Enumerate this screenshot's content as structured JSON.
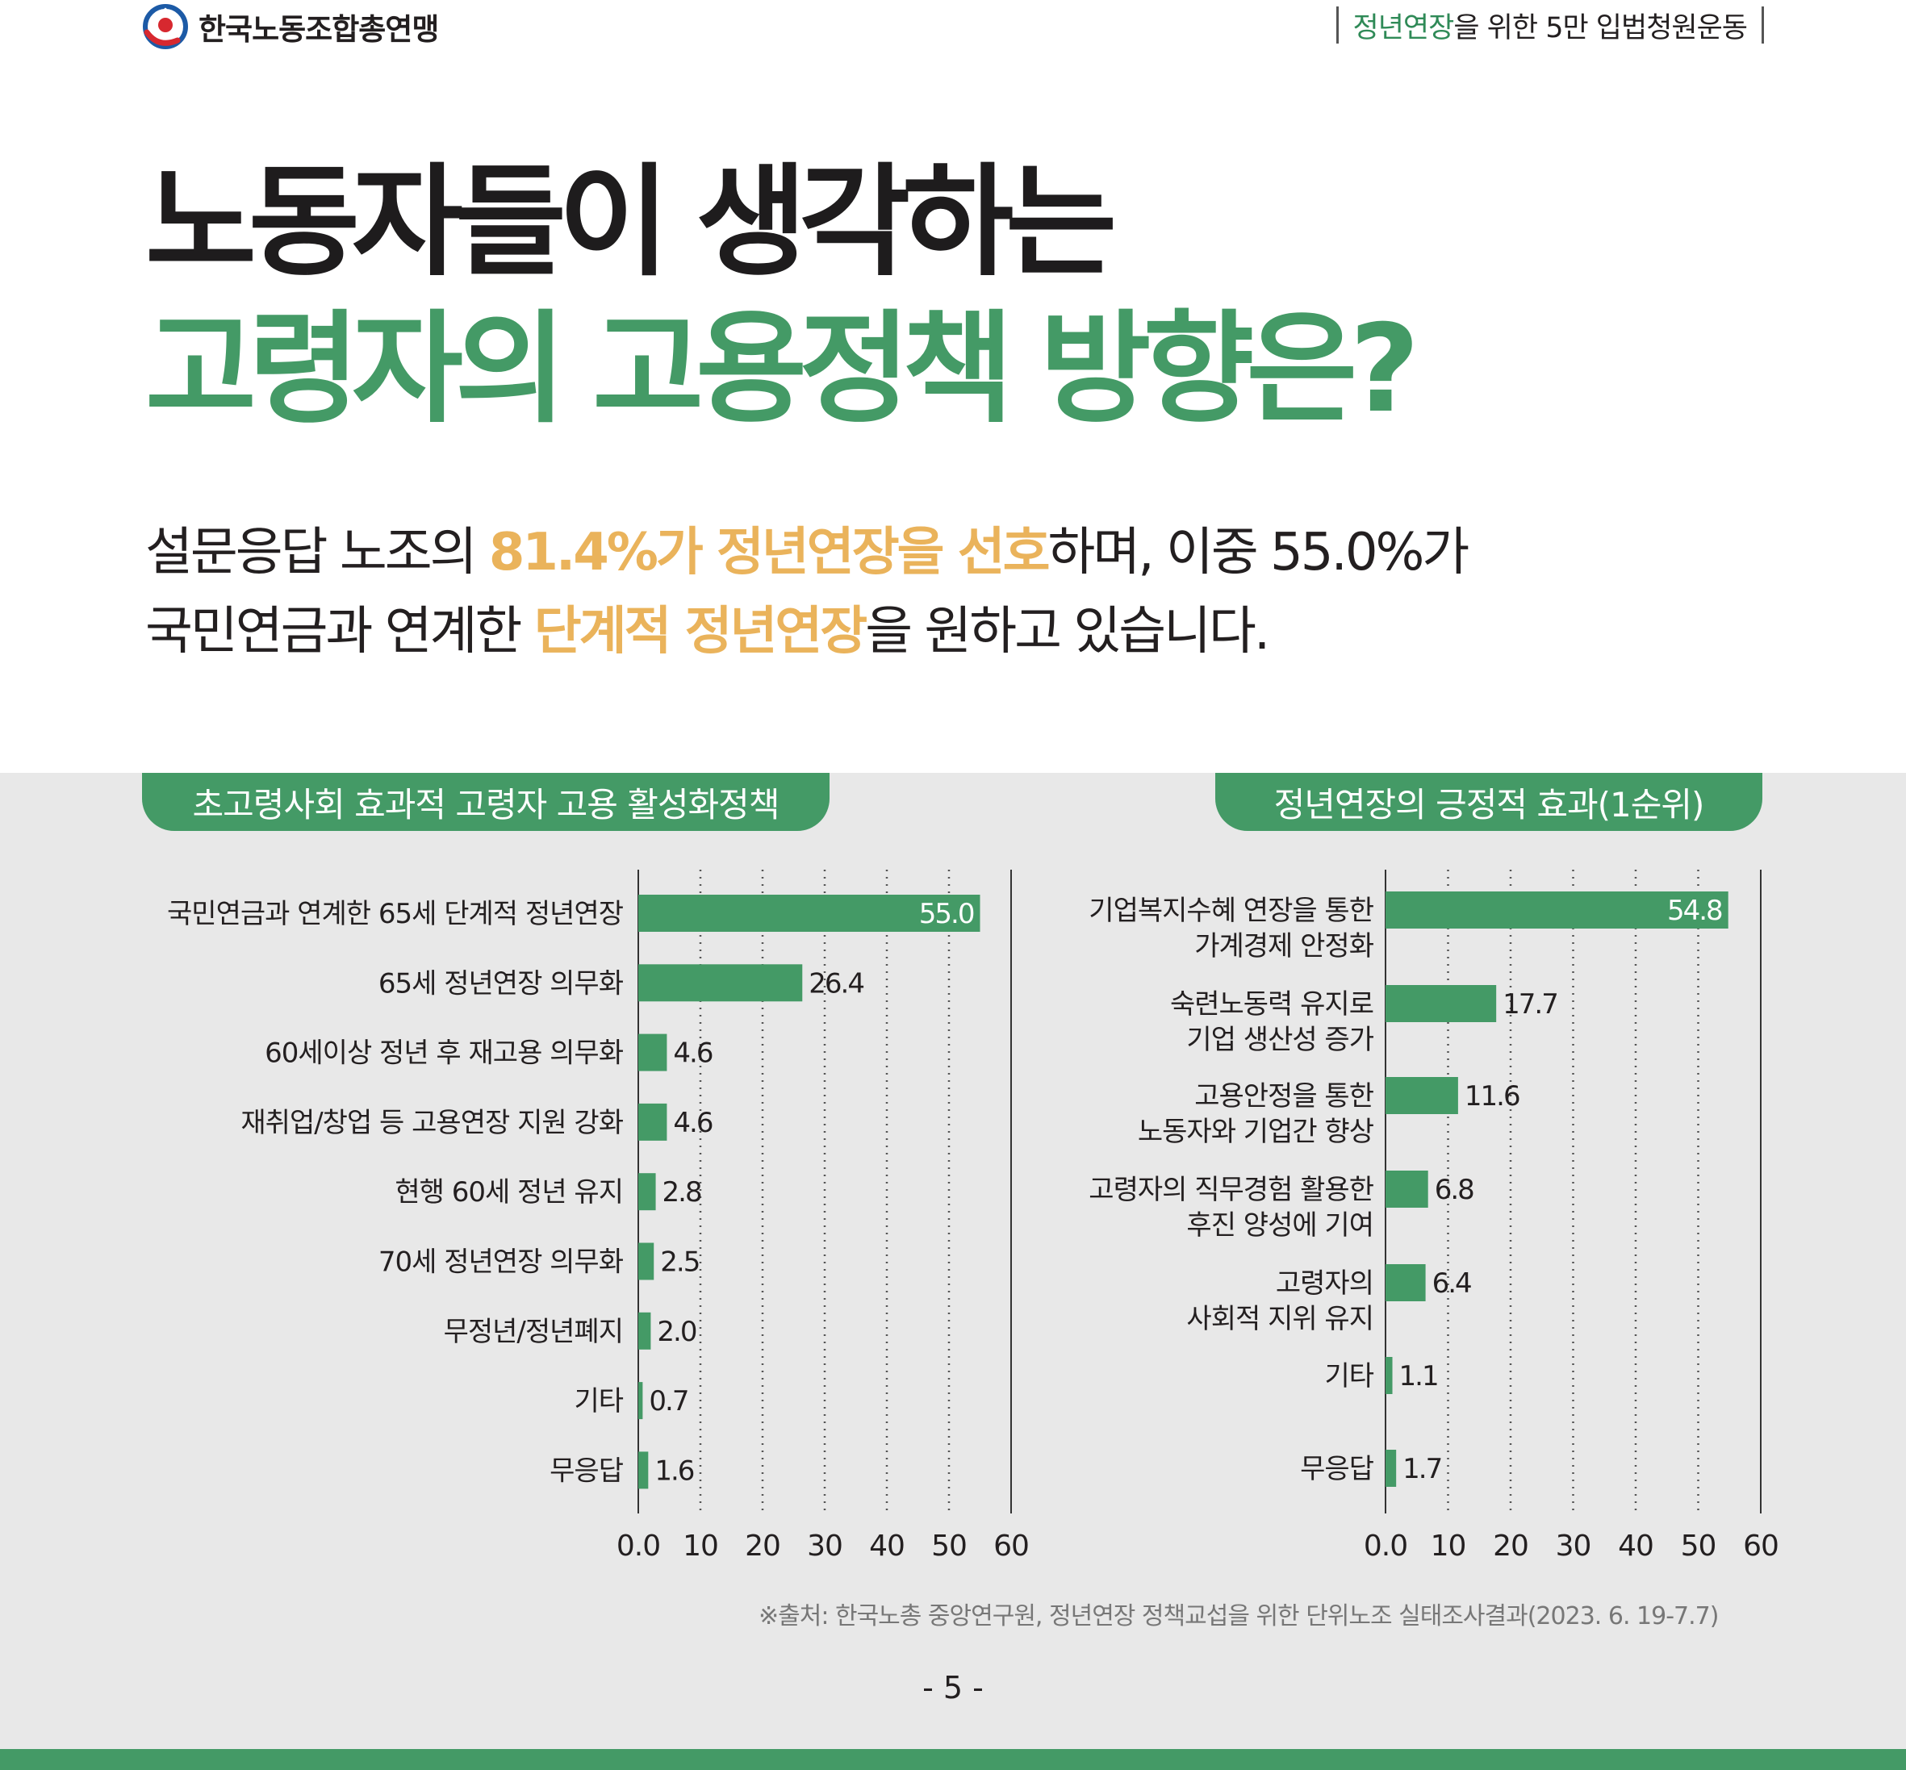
{
  "header": {
    "org_name": "한국노동조합총연맹",
    "campaign_highlight": "정년연장",
    "campaign_rest": "을 위한 5만 입법청원운동"
  },
  "title": {
    "line1": "노동자들이 생각하는",
    "line2": "고령자의 고용정책 방향은?"
  },
  "subtitle": {
    "p1": "설문응답 노조의 ",
    "p1_hl": "81.4%가 정년연장을 선호",
    "p1_rest": "하며, 이중 55.0%가",
    "p2": "국민연금과 연계한 ",
    "p2_hl": "단계적 정년연장",
    "p2_rest": "을 원하고 있습니다."
  },
  "colors": {
    "accent": "#449a66",
    "highlight": "#eab35b",
    "band": "#e8e8e8"
  },
  "chart_data": [
    {
      "type": "bar",
      "orientation": "horizontal",
      "title": "초고령사회 효과적 고령자 고용 활성화정책",
      "categories": [
        [
          "국민연금과 연계한 65세 단계적 정년연장"
        ],
        [
          "65세 정년연장 의무화"
        ],
        [
          "60세이상 정년 후 재고용 의무화"
        ],
        [
          "재취업/창업 등 고용연장 지원 강화"
        ],
        [
          "현행 60세 정년 유지"
        ],
        [
          "70세 정년연장 의무화"
        ],
        [
          "무정년/정년폐지"
        ],
        [
          "기타"
        ],
        [
          "무응답"
        ]
      ],
      "values": [
        55.0,
        26.4,
        4.6,
        4.6,
        2.8,
        2.5,
        2.0,
        0.7,
        1.6
      ],
      "value_labels": [
        "55.0",
        "26.4",
        "4.6",
        "4.6",
        "2.8",
        "2.5",
        "2.0",
        "0.7",
        "1.6"
      ],
      "xlim": [
        0,
        60
      ],
      "xticks": [
        0,
        10,
        20,
        30,
        40,
        50,
        60
      ],
      "xtick_labels": [
        "0.0",
        "10",
        "20",
        "30",
        "40",
        "50",
        "60"
      ],
      "grid": "vertical dotted"
    },
    {
      "type": "bar",
      "orientation": "horizontal",
      "title": "정년연장의 긍정적 효과(1순위)",
      "categories": [
        [
          "기업복지수혜 연장을 통한",
          "가계경제 안정화"
        ],
        [
          "숙련노동력 유지로",
          "기업 생산성 증가"
        ],
        [
          "고용안정을 통한",
          "노동자와 기업간 향상"
        ],
        [
          "고령자의 직무경험 활용한",
          "후진 양성에 기여"
        ],
        [
          "고령자의",
          "사회적 지위 유지"
        ],
        [
          "기타"
        ],
        [
          "무응답"
        ]
      ],
      "values": [
        54.8,
        17.7,
        11.6,
        6.8,
        6.4,
        1.1,
        1.7
      ],
      "value_labels": [
        "54.8",
        "17.7",
        "11.6",
        "6.8",
        "6.4",
        "1.1",
        "1.7"
      ],
      "xlim": [
        0,
        60
      ],
      "xticks": [
        0,
        10,
        20,
        30,
        40,
        50,
        60
      ],
      "xtick_labels": [
        "0.0",
        "10",
        "20",
        "30",
        "40",
        "50",
        "60"
      ],
      "grid": "vertical dotted"
    }
  ],
  "footer": {
    "source": "※출처: 한국노총 중앙연구원, 정년연장 정책교섭을 위한 단위노조 실태조사결과(2023. 6. 19-7.7)",
    "page_number": "- 5 -"
  }
}
